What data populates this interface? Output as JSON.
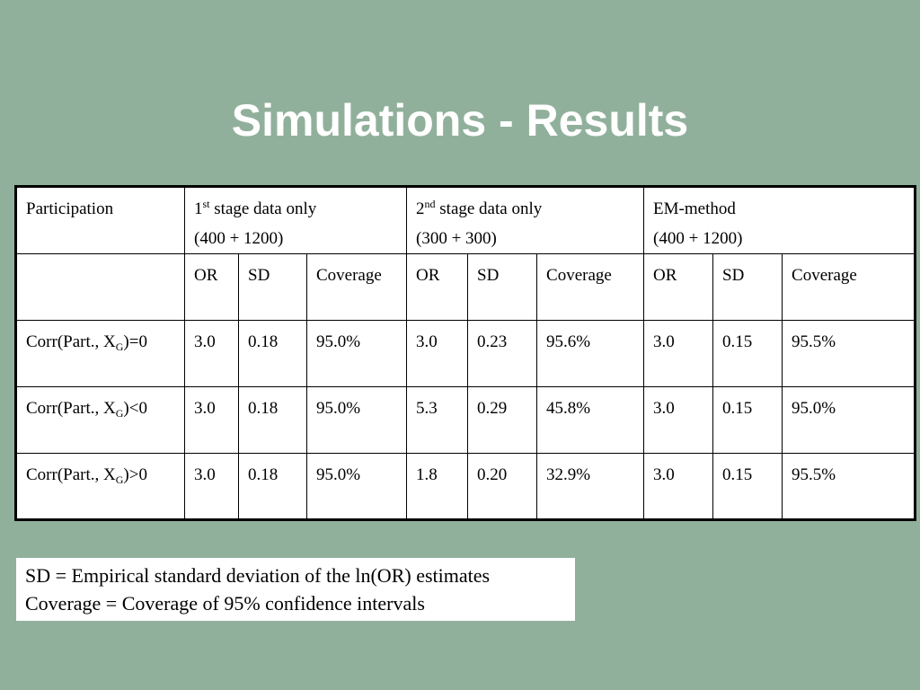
{
  "title": "Simulations - Results",
  "table": {
    "header": {
      "participation": "Participation",
      "stage1": {
        "num": "1",
        "sup": "st",
        "label": " stage data only",
        "sub_line": "(400 + 1200)"
      },
      "stage2": {
        "num": "2",
        "sup": "nd",
        "label": " stage data only",
        "sub_line": "(300 + 300)"
      },
      "em": {
        "label": "EM-method",
        "sub_line": "(400 + 1200)"
      }
    },
    "subheader": [
      "OR",
      "SD",
      "Coverage",
      "OR",
      "SD",
      "Coverage",
      "OR",
      "SD",
      "Coverage"
    ],
    "rows": [
      {
        "label": {
          "pre": "Corr(Part., X",
          "sub": "G",
          "post": ")=0"
        },
        "cells": [
          "3.0",
          "0.18",
          "95.0%",
          "3.0",
          "0.23",
          "95.6%",
          "3.0",
          "0.15",
          "95.5%"
        ]
      },
      {
        "label": {
          "pre": "Corr(Part., X",
          "sub": "G",
          "post": ")<0"
        },
        "cells": [
          "3.0",
          "0.18",
          "95.0%",
          "5.3",
          "0.29",
          "45.8%",
          "3.0",
          "0.15",
          "95.0%"
        ]
      },
      {
        "label": {
          "pre": "Corr(Part., X",
          "sub": "G",
          "post": ")>0"
        },
        "cells": [
          "3.0",
          "0.18",
          "95.0%",
          "1.8",
          "0.20",
          "32.9%",
          "3.0",
          "0.15",
          "95.5%"
        ]
      }
    ]
  },
  "legend": {
    "line1": "SD = Empirical standard deviation of the ln(OR) estimates",
    "line2": "Coverage = Coverage of 95% confidence intervals"
  },
  "colors": {
    "background": "#91b09c",
    "title": "#ffffff"
  }
}
